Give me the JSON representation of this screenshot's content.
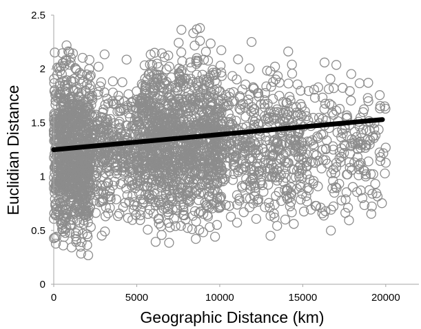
{
  "chart_data": {
    "type": "scatter",
    "xlabel": "Geographic Distance (km)",
    "ylabel": "Euclidian Distance",
    "xlim": [
      0,
      22000
    ],
    "ylim": [
      0,
      2.5
    ],
    "x_ticks": [
      "0",
      "5000",
      "10000",
      "15000",
      "20000"
    ],
    "y_ticks": [
      "0",
      "0.5",
      "1",
      "1.5",
      "2",
      "2.5"
    ],
    "grid": false,
    "legend": "none",
    "marker": "open-circle",
    "point_color": "#8c8c8c",
    "trend_color": "#000000",
    "trendline": {
      "x": [
        0,
        19800
      ],
      "y": [
        1.25,
        1.53
      ]
    },
    "point_clusters": [
      {
        "x_range": [
          0,
          2200
        ],
        "y_range": [
          0.05,
          2.4
        ],
        "count": 900
      },
      {
        "x_range": [
          2200,
          5200
        ],
        "y_range": [
          0.3,
          2.2
        ],
        "count": 380
      },
      {
        "x_range": [
          5200,
          10200
        ],
        "y_range": [
          0.2,
          2.48
        ],
        "count": 1200
      },
      {
        "x_range": [
          10200,
          15000
        ],
        "y_range": [
          0.3,
          2.3
        ],
        "count": 430
      },
      {
        "x_range": [
          15000,
          20000
        ],
        "y_range": [
          0.22,
          2.28
        ],
        "count": 210
      }
    ]
  }
}
